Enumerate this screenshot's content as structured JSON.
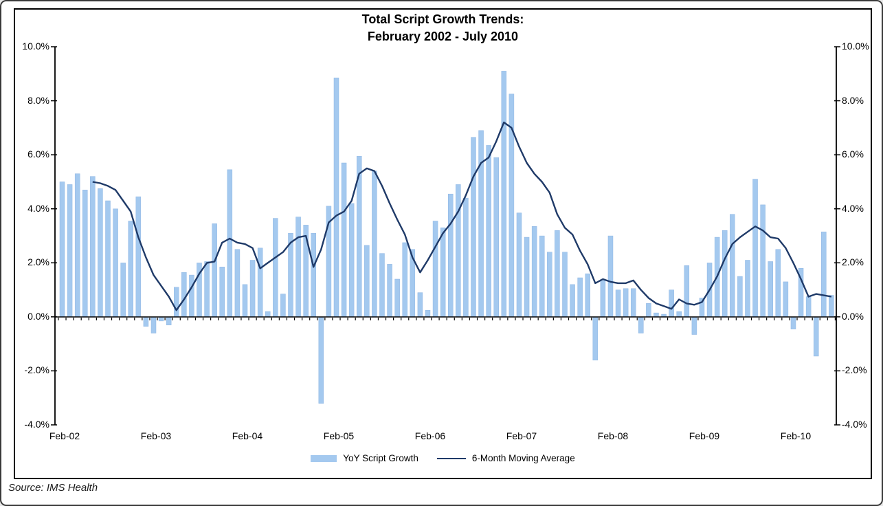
{
  "title": {
    "line1": "Total Script Growth Trends:",
    "line2": "February 2002 - July 2010"
  },
  "source_text": "Source: IMS Health",
  "legend": {
    "bar_label": "YoY Script Growth",
    "line_label": "6-Month Moving Average"
  },
  "colors": {
    "bar": "#A4C9EF",
    "bar_edge": "#8FB6E3",
    "line": "#1F3A68",
    "axis": "#000000",
    "text": "#000000"
  },
  "y_axis": {
    "tick_labels": [
      "10.0%",
      "8.0%",
      "6.0%",
      "4.0%",
      "2.0%",
      "0.0%",
      "-2.0%",
      "-4.0%"
    ],
    "min": -4,
    "max": 10,
    "step": 2
  },
  "x_axis": {
    "labels": [
      "Feb-02",
      "Feb-03",
      "Feb-04",
      "Feb-05",
      "Feb-06",
      "Feb-07",
      "Feb-08",
      "Feb-09",
      "Feb-10"
    ],
    "label_every": 12
  },
  "chart_data": {
    "type": "bar+line",
    "title": "Total Script Growth Trends: February 2002 - July 2010",
    "ylim": [
      -4,
      10
    ],
    "y_tick_step": 2,
    "grid": false,
    "legend_position": "bottom",
    "x": [
      "Feb-02",
      "Mar-02",
      "Apr-02",
      "May-02",
      "Jun-02",
      "Jul-02",
      "Aug-02",
      "Sep-02",
      "Oct-02",
      "Nov-02",
      "Dec-02",
      "Jan-03",
      "Feb-03",
      "Mar-03",
      "Apr-03",
      "May-03",
      "Jun-03",
      "Jul-03",
      "Aug-03",
      "Sep-03",
      "Oct-03",
      "Nov-03",
      "Dec-03",
      "Jan-04",
      "Feb-04",
      "Mar-04",
      "Apr-04",
      "May-04",
      "Jun-04",
      "Jul-04",
      "Aug-04",
      "Sep-04",
      "Oct-04",
      "Nov-04",
      "Dec-04",
      "Jan-05",
      "Feb-05",
      "Mar-05",
      "Apr-05",
      "May-05",
      "Jun-05",
      "Jul-05",
      "Aug-05",
      "Sep-05",
      "Oct-05",
      "Nov-05",
      "Dec-05",
      "Jan-06",
      "Feb-06",
      "Mar-06",
      "Apr-06",
      "May-06",
      "Jun-06",
      "Jul-06",
      "Aug-06",
      "Sep-06",
      "Oct-06",
      "Nov-06",
      "Dec-06",
      "Jan-07",
      "Feb-07",
      "Mar-07",
      "Apr-07",
      "May-07",
      "Jun-07",
      "Jul-07",
      "Aug-07",
      "Sep-07",
      "Oct-07",
      "Nov-07",
      "Dec-07",
      "Jan-08",
      "Feb-08",
      "Mar-08",
      "Apr-08",
      "May-08",
      "Jun-08",
      "Jul-08",
      "Aug-08",
      "Sep-08",
      "Oct-08",
      "Nov-08",
      "Dec-08",
      "Jan-09",
      "Feb-09",
      "Mar-09",
      "Apr-09",
      "May-09",
      "Jun-09",
      "Jul-09",
      "Aug-09",
      "Sep-09",
      "Oct-09",
      "Nov-09",
      "Dec-09",
      "Jan-10",
      "Feb-10",
      "Mar-10",
      "Apr-10",
      "May-10",
      "Jun-10",
      "Jul-10"
    ],
    "series": [
      {
        "name": "YoY Script Growth",
        "type": "bar",
        "color": "#A4C9EF",
        "values": [
          5.0,
          4.9,
          5.3,
          4.7,
          5.2,
          4.75,
          4.3,
          4.0,
          2.0,
          3.55,
          4.45,
          -0.35,
          -0.6,
          -0.15,
          -0.3,
          1.1,
          1.65,
          1.55,
          2.0,
          2.05,
          3.45,
          1.85,
          5.45,
          2.5,
          1.2,
          2.1,
          2.55,
          0.2,
          3.65,
          0.85,
          3.1,
          3.7,
          3.4,
          3.1,
          -3.2,
          4.1,
          8.85,
          5.7,
          4.2,
          5.95,
          2.65,
          5.4,
          2.35,
          1.95,
          1.4,
          2.75,
          2.5,
          0.9,
          0.25,
          3.55,
          3.3,
          4.55,
          4.9,
          4.4,
          6.65,
          6.9,
          6.35,
          5.9,
          9.1,
          8.25,
          3.85,
          2.95,
          3.35,
          3.0,
          2.4,
          3.2,
          2.4,
          1.2,
          1.45,
          1.6,
          -1.6,
          1.4,
          3.0,
          1.0,
          1.05,
          1.05,
          -0.6,
          0.5,
          0.15,
          0.1,
          1.0,
          0.2,
          1.9,
          -0.65,
          0.7,
          2.0,
          2.95,
          3.2,
          3.8,
          1.5,
          2.1,
          5.1,
          4.15,
          2.05,
          2.5,
          1.3,
          -0.45,
          1.8,
          0.75,
          -1.45,
          3.15,
          0.8
        ]
      },
      {
        "name": "6-Month Moving Average",
        "type": "line",
        "color": "#1F3A68",
        "values": [
          null,
          null,
          null,
          null,
          5.0,
          4.95,
          4.85,
          4.7,
          4.3,
          3.9,
          2.95,
          2.2,
          1.55,
          1.15,
          0.75,
          0.25,
          0.65,
          1.1,
          1.6,
          2.0,
          2.05,
          2.75,
          2.9,
          2.75,
          2.7,
          2.55,
          1.8,
          2.0,
          2.2,
          2.4,
          2.75,
          2.95,
          3.0,
          1.85,
          2.5,
          3.5,
          3.75,
          3.9,
          4.3,
          5.3,
          5.5,
          5.4,
          4.85,
          4.2,
          3.6,
          3.05,
          2.2,
          1.65,
          2.1,
          2.6,
          3.1,
          3.45,
          3.9,
          4.5,
          5.2,
          5.7,
          5.9,
          6.5,
          7.2,
          7.0,
          6.3,
          5.7,
          5.3,
          5.0,
          4.6,
          3.8,
          3.3,
          3.05,
          2.45,
          1.95,
          1.25,
          1.4,
          1.3,
          1.25,
          1.25,
          1.35,
          1.0,
          0.7,
          0.5,
          0.4,
          0.3,
          0.65,
          0.5,
          0.45,
          0.55,
          1.0,
          1.5,
          2.15,
          2.7,
          2.95,
          3.15,
          3.35,
          3.2,
          2.95,
          2.9,
          2.55,
          2.0,
          1.4,
          0.75,
          0.85,
          0.8,
          0.75
        ]
      }
    ]
  }
}
